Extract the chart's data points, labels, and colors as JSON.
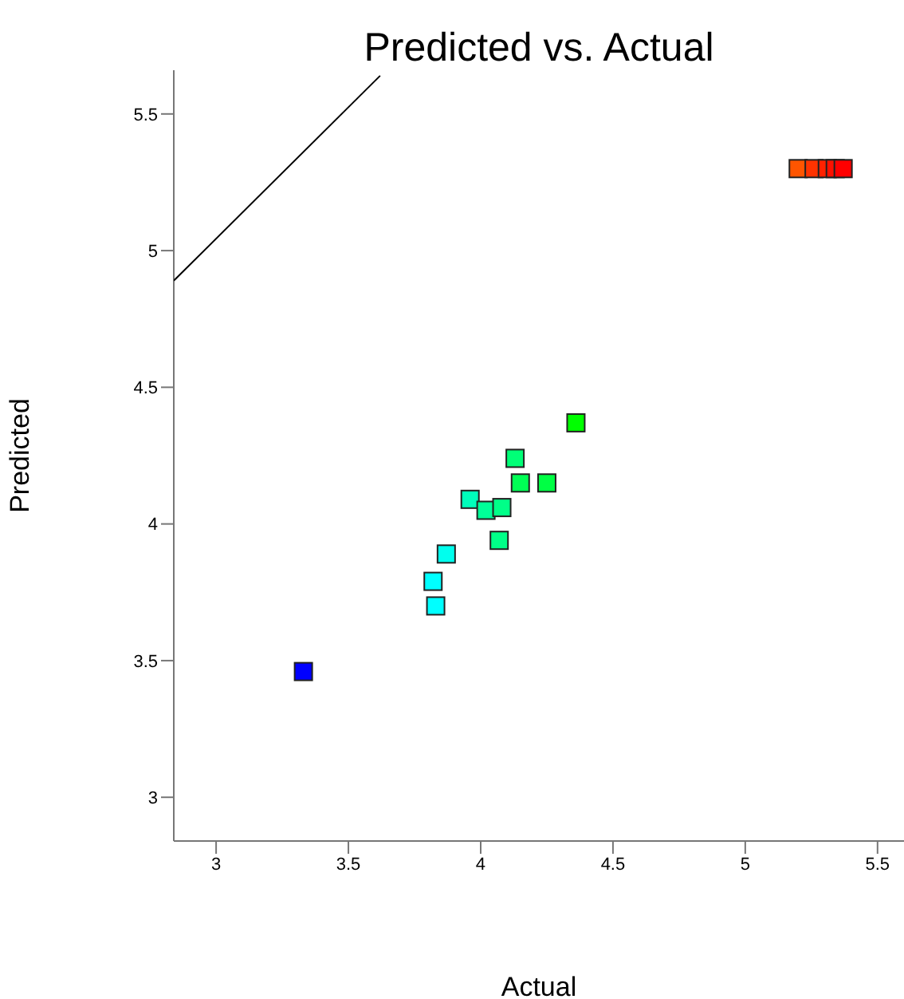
{
  "chart_data": {
    "type": "scatter",
    "title": "Predicted vs. Actual",
    "xlabel": "Actual",
    "ylabel": "Predicted",
    "xlim": [
      2.84,
      5.6
    ],
    "ylim": [
      2.84,
      5.66
    ],
    "xticks": [
      3,
      3.5,
      4,
      4.5,
      5,
      5.5
    ],
    "yticks": [
      3,
      3.5,
      4,
      4.5,
      5,
      5.5
    ],
    "series": [
      {
        "marker": "square",
        "x": [
          3.33,
          3.83,
          3.82,
          3.87,
          3.96,
          4.02,
          4.08,
          4.07,
          4.13,
          4.15,
          4.25,
          4.36,
          5.2,
          5.26,
          5.31,
          5.34,
          5.37
        ],
        "values": [
          3.46,
          3.7,
          3.79,
          3.89,
          4.09,
          4.05,
          4.06,
          3.94,
          4.24,
          4.15,
          4.15,
          4.37,
          5.3,
          5.3,
          5.3,
          5.3,
          5.3
        ],
        "colors": [
          "#0000ff",
          "#00ffff",
          "#00ffff",
          "#00ffee",
          "#00ffbb",
          "#00ff99",
          "#00ff88",
          "#00ff88",
          "#00ff77",
          "#00ff55",
          "#00ff44",
          "#00ff00",
          "#ff5500",
          "#ff3300",
          "#ff2200",
          "#ff1100",
          "#ff0000"
        ]
      },
      {
        "type": "line",
        "marker": "none",
        "line_style": "solid",
        "color": "#000000",
        "x": [
          2.84,
          3.62
        ],
        "values": [
          4.89,
          5.64
        ]
      }
    ]
  }
}
